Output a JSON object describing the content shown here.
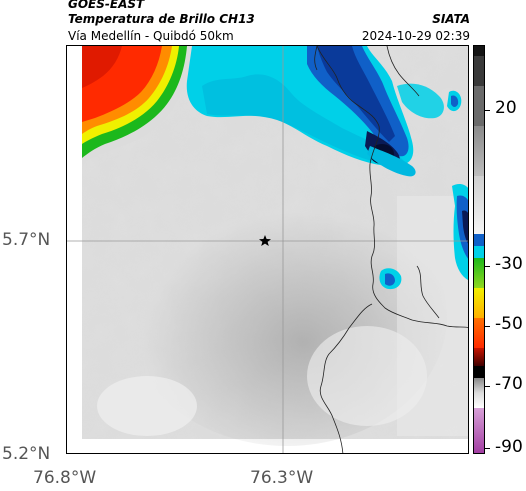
{
  "header": {
    "satellite": "GOES-EAST",
    "product": "Temperatura de Brillo CH13",
    "route": "Vía Medellín - Quibdó 50km",
    "org": "SIATA",
    "timestamp": "2024-10-29 02:39"
  },
  "axes": {
    "lat_ticks": [
      "5.7°N",
      "5.2°N"
    ],
    "lon_ticks": [
      "76.8°W",
      "76.3°W"
    ]
  },
  "colorbar": {
    "ticks": [
      "20",
      "-30",
      "-50",
      "-70",
      "-90"
    ]
  },
  "colors": {
    "cold_red": "#ff2a00",
    "orange": "#ff8c00",
    "yellow": "#f0f000",
    "green": "#1cb81c",
    "cyan": "#00d0e8",
    "blue": "#1060c8",
    "navy": "#0a1a55",
    "gray_light": "#e4e4e4",
    "gray_mid": "#bdbdbd"
  },
  "marker": {
    "icon": "star-icon"
  }
}
